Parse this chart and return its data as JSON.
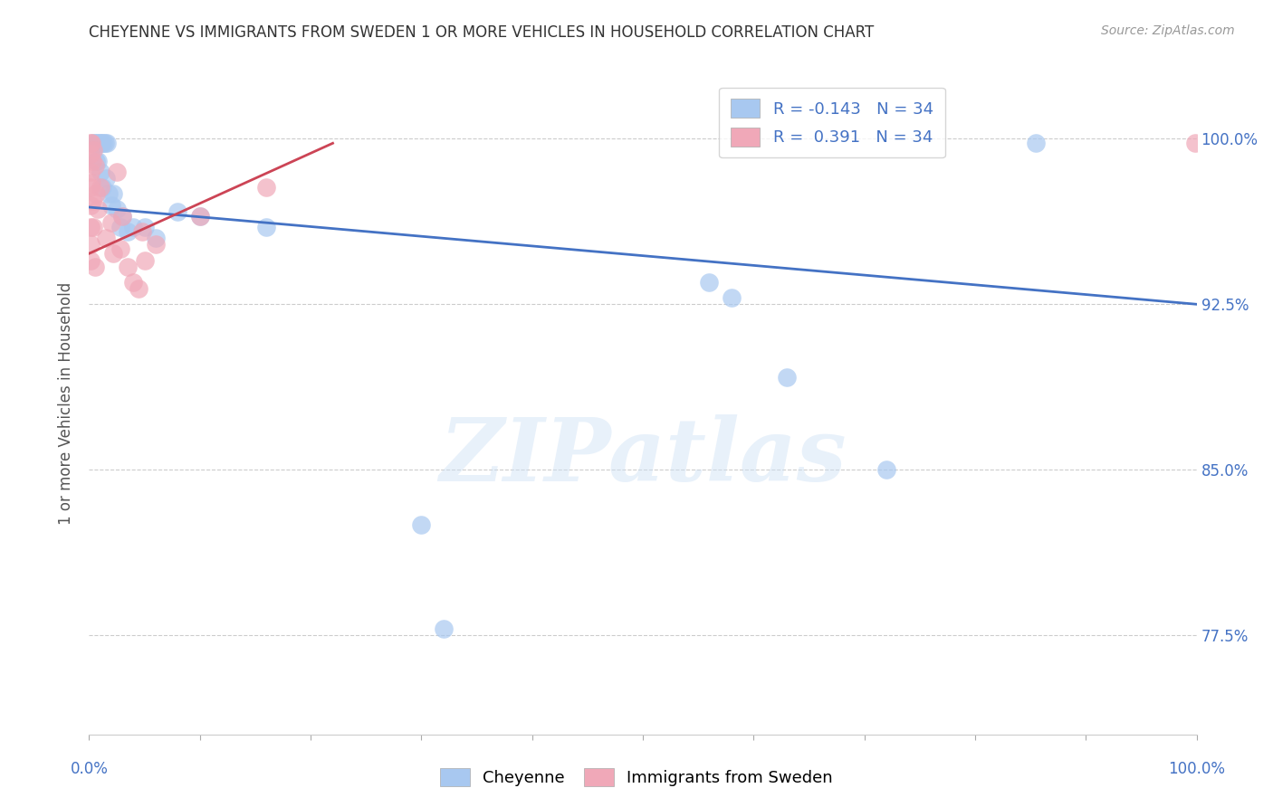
{
  "title": "CHEYENNE VS IMMIGRANTS FROM SWEDEN 1 OR MORE VEHICLES IN HOUSEHOLD CORRELATION CHART",
  "source": "Source: ZipAtlas.com",
  "ylabel": "1 or more Vehicles in Household",
  "ytick_labels": [
    "77.5%",
    "85.0%",
    "92.5%",
    "100.0%"
  ],
  "ytick_values": [
    0.775,
    0.85,
    0.925,
    1.0
  ],
  "xlim": [
    0.0,
    1.0
  ],
  "ylim": [
    0.73,
    1.03
  ],
  "legend_blue_label": "R = -0.143   N = 34",
  "legend_pink_label": "R =  0.391   N = 34",
  "watermark": "ZIPatlas",
  "cheyenne_blue": "#a8c8f0",
  "sweden_pink": "#f0a8b8",
  "trendline_blue": "#4472c4",
  "trendline_pink": "#cc4455",
  "cheyenne_points": [
    [
      0.004,
      0.998
    ],
    [
      0.005,
      0.998
    ],
    [
      0.007,
      0.998
    ],
    [
      0.009,
      0.998
    ],
    [
      0.01,
      0.998
    ],
    [
      0.011,
      0.998
    ],
    [
      0.013,
      0.998
    ],
    [
      0.014,
      0.998
    ],
    [
      0.016,
      0.998
    ],
    [
      0.006,
      0.99
    ],
    [
      0.008,
      0.99
    ],
    [
      0.01,
      0.985
    ],
    [
      0.012,
      0.978
    ],
    [
      0.015,
      0.982
    ],
    [
      0.018,
      0.975
    ],
    [
      0.02,
      0.97
    ],
    [
      0.022,
      0.975
    ],
    [
      0.025,
      0.968
    ],
    [
      0.028,
      0.96
    ],
    [
      0.03,
      0.965
    ],
    [
      0.035,
      0.958
    ],
    [
      0.04,
      0.96
    ],
    [
      0.05,
      0.96
    ],
    [
      0.06,
      0.955
    ],
    [
      0.08,
      0.967
    ],
    [
      0.1,
      0.965
    ],
    [
      0.16,
      0.96
    ],
    [
      0.3,
      0.825
    ],
    [
      0.32,
      0.778
    ],
    [
      0.56,
      0.935
    ],
    [
      0.58,
      0.928
    ],
    [
      0.63,
      0.892
    ],
    [
      0.72,
      0.85
    ],
    [
      0.855,
      0.998
    ]
  ],
  "sweden_points": [
    [
      0.001,
      0.998
    ],
    [
      0.001,
      0.993
    ],
    [
      0.001,
      0.985
    ],
    [
      0.001,
      0.978
    ],
    [
      0.001,
      0.97
    ],
    [
      0.001,
      0.96
    ],
    [
      0.001,
      0.952
    ],
    [
      0.001,
      0.945
    ],
    [
      0.002,
      0.998
    ],
    [
      0.002,
      0.98
    ],
    [
      0.003,
      0.99
    ],
    [
      0.003,
      0.972
    ],
    [
      0.004,
      0.995
    ],
    [
      0.004,
      0.96
    ],
    [
      0.005,
      0.988
    ],
    [
      0.005,
      0.942
    ],
    [
      0.006,
      0.975
    ],
    [
      0.008,
      0.968
    ],
    [
      0.01,
      0.978
    ],
    [
      0.015,
      0.955
    ],
    [
      0.02,
      0.962
    ],
    [
      0.022,
      0.948
    ],
    [
      0.025,
      0.985
    ],
    [
      0.028,
      0.95
    ],
    [
      0.03,
      0.965
    ],
    [
      0.035,
      0.942
    ],
    [
      0.04,
      0.935
    ],
    [
      0.045,
      0.932
    ],
    [
      0.048,
      0.958
    ],
    [
      0.05,
      0.945
    ],
    [
      0.06,
      0.952
    ],
    [
      0.1,
      0.965
    ],
    [
      0.16,
      0.978
    ],
    [
      0.999,
      0.998
    ]
  ],
  "cheyenne_trend_x": [
    0.0,
    1.0
  ],
  "cheyenne_trend_y": [
    0.969,
    0.925
  ],
  "sweden_trend_x": [
    0.0,
    0.22
  ],
  "sweden_trend_y": [
    0.948,
    0.998
  ]
}
